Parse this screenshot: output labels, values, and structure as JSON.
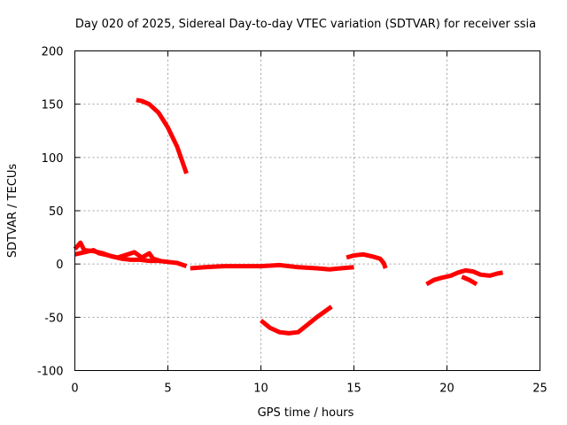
{
  "chart_data": {
    "type": "line",
    "title": "Day 020 of 2025, Sidereal Day-to-day VTEC variation (SDTVAR) for receiver ssia",
    "xlabel": "GPS time / hours",
    "ylabel": "SDTVAR / TECUs",
    "xlim": [
      0,
      25
    ],
    "ylim": [
      -100,
      200
    ],
    "xticks": [
      0,
      5,
      10,
      15,
      20,
      25
    ],
    "yticks": [
      -100,
      -50,
      0,
      50,
      100,
      150,
      200
    ],
    "grid": true,
    "series_color": "#ff0000",
    "series": [
      {
        "name": "arc-1",
        "points": [
          [
            0,
            14
          ],
          [
            0.3,
            20
          ],
          [
            0.5,
            13
          ],
          [
            1,
            12
          ],
          [
            1.5,
            10
          ],
          [
            2,
            7
          ],
          [
            2.5,
            5
          ],
          [
            3,
            4
          ],
          [
            3.5,
            4
          ],
          [
            4,
            3
          ],
          [
            4.5,
            3
          ],
          [
            5,
            2
          ],
          [
            5.5,
            1
          ],
          [
            6,
            -2
          ]
        ]
      },
      {
        "name": "arc-1-noise",
        "points": [
          [
            0,
            9
          ],
          [
            0.5,
            11
          ],
          [
            1,
            13
          ],
          [
            1.3,
            10
          ],
          [
            1.8,
            8
          ],
          [
            2.3,
            6
          ],
          [
            3.2,
            11
          ],
          [
            3.6,
            6
          ],
          [
            4,
            10
          ],
          [
            4.2,
            5
          ],
          [
            4.6,
            3
          ]
        ]
      },
      {
        "name": "arc-2",
        "points": [
          [
            3.3,
            154
          ],
          [
            3.6,
            153
          ],
          [
            4,
            150
          ],
          [
            4.5,
            142
          ],
          [
            5,
            128
          ],
          [
            5.5,
            110
          ],
          [
            6,
            85
          ]
        ]
      },
      {
        "name": "arc-3",
        "points": [
          [
            6.2,
            -4
          ],
          [
            7,
            -3
          ],
          [
            8,
            -2
          ],
          [
            9,
            -2
          ],
          [
            10,
            -2
          ],
          [
            11,
            -1
          ],
          [
            12,
            -3
          ],
          [
            13,
            -4
          ],
          [
            13.7,
            -5
          ],
          [
            14.3,
            -4
          ],
          [
            15,
            -3
          ]
        ]
      },
      {
        "name": "arc-4",
        "points": [
          [
            10,
            -53
          ],
          [
            10.5,
            -60
          ],
          [
            11,
            -64
          ],
          [
            11.5,
            -65
          ],
          [
            12,
            -64
          ],
          [
            12.5,
            -57
          ],
          [
            13,
            -50
          ],
          [
            13.4,
            -45
          ],
          [
            13.8,
            -40
          ]
        ]
      },
      {
        "name": "arc-5",
        "points": [
          [
            14.6,
            6
          ],
          [
            15,
            8
          ],
          [
            15.5,
            9
          ],
          [
            16,
            7
          ],
          [
            16.4,
            5
          ],
          [
            16.6,
            1
          ],
          [
            16.7,
            -4
          ]
        ]
      },
      {
        "name": "arc-6",
        "points": [
          [
            18.9,
            -19
          ],
          [
            19.3,
            -15
          ],
          [
            19.7,
            -13
          ],
          [
            20.2,
            -11
          ],
          [
            20.6,
            -8
          ],
          [
            21,
            -6
          ],
          [
            21.4,
            -7
          ],
          [
            21.8,
            -10
          ],
          [
            22.3,
            -11
          ],
          [
            22.7,
            -9
          ],
          [
            23,
            -8
          ]
        ]
      },
      {
        "name": "arc-6-branch",
        "points": [
          [
            20.8,
            -12
          ],
          [
            21.2,
            -15
          ],
          [
            21.6,
            -19
          ]
        ]
      }
    ]
  }
}
